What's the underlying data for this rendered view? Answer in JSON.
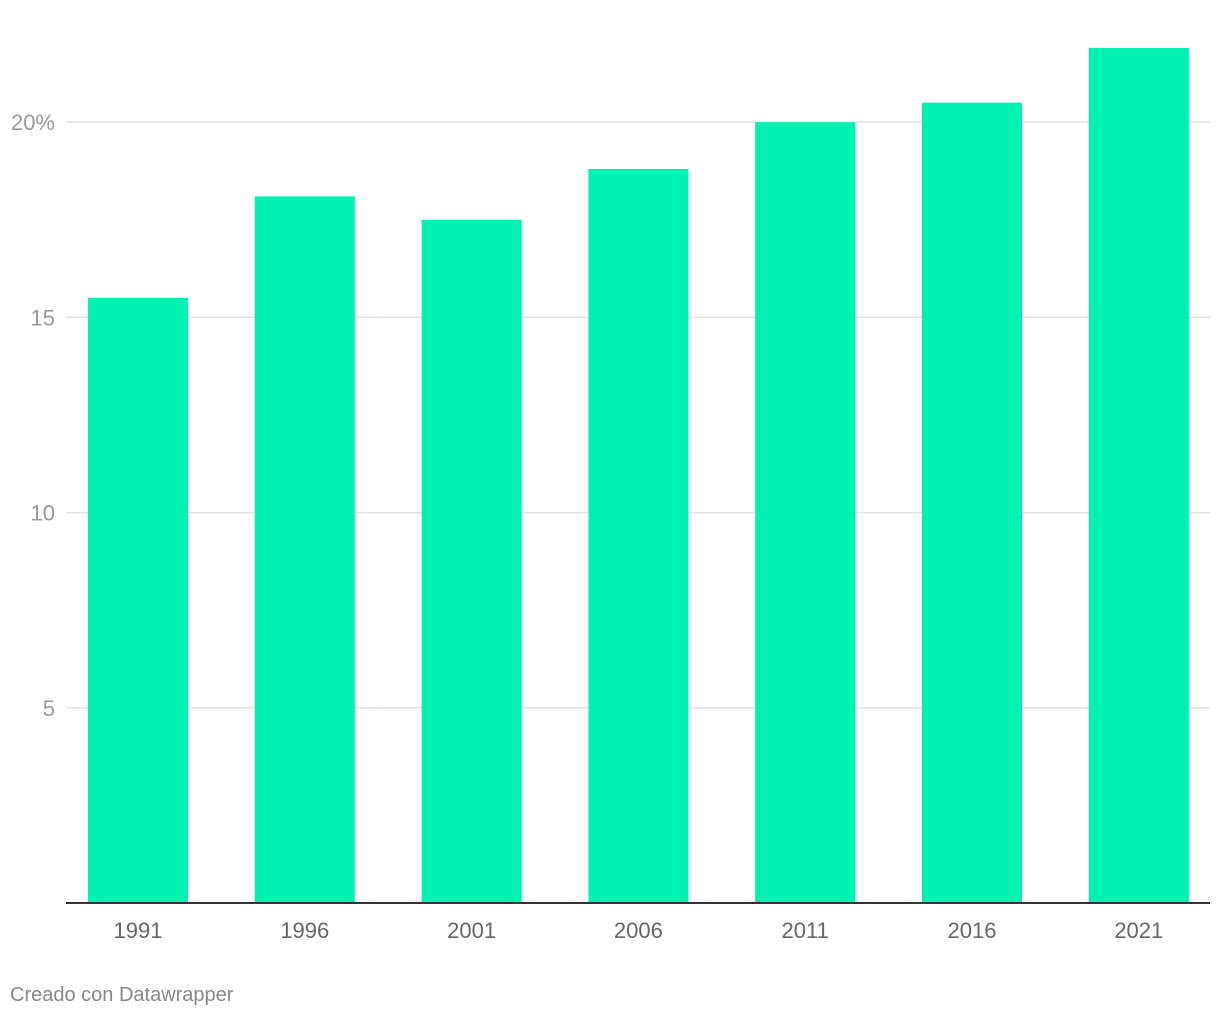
{
  "chart_data": {
    "type": "bar",
    "categories": [
      "1991",
      "1996",
      "2001",
      "2006",
      "2011",
      "2016",
      "2021"
    ],
    "values": [
      15.5,
      18.1,
      17.5,
      18.8,
      20.0,
      20.5,
      21.9
    ],
    "title": "",
    "xlabel": "",
    "ylabel": "",
    "ylim": [
      0,
      21.9
    ],
    "yticks": [
      {
        "value": 5,
        "label": "5"
      },
      {
        "value": 10,
        "label": "10"
      },
      {
        "value": 15,
        "label": "15"
      },
      {
        "value": 20,
        "label": "20%"
      }
    ],
    "grid": true,
    "colors": {
      "bar": "#00f2b0",
      "grid": "#e3e3e3",
      "axis": "#333333",
      "xtick_text": "#666666",
      "ytick_text": "#999999"
    }
  },
  "footer": {
    "credit": "Creado con Datawrapper"
  }
}
